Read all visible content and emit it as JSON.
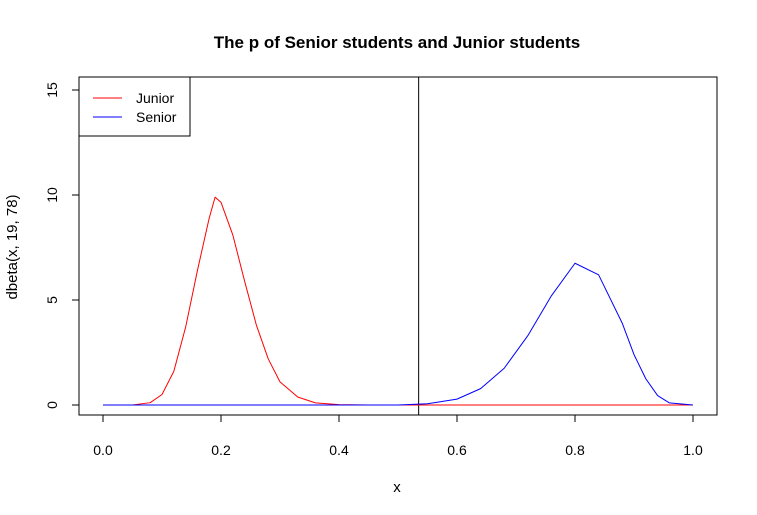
{
  "chart_data": {
    "type": "line",
    "title": "The p of Senior students and Junior students",
    "xlabel": "x",
    "ylabel": "dbeta(x, 19, 78)",
    "xlim": [
      0.0,
      1.0
    ],
    "ylim": [
      0,
      15
    ],
    "x_ticks": [
      "0.0",
      "0.2",
      "0.4",
      "0.6",
      "0.8",
      "1.0"
    ],
    "y_ticks": [
      "0",
      "5",
      "10",
      "15"
    ],
    "grid": false,
    "legend_position": "top-left",
    "vline_x": 0.535,
    "series": [
      {
        "name": "Junior",
        "color": "#ff0000",
        "distribution": "dbeta(x, 19, 78)",
        "x": [
          0.0,
          0.05,
          0.08,
          0.1,
          0.12,
          0.14,
          0.16,
          0.18,
          0.19,
          0.2,
          0.22,
          0.24,
          0.26,
          0.28,
          0.3,
          0.33,
          0.36,
          0.4,
          0.45,
          0.5,
          1.0
        ],
        "y": [
          0.0,
          0.003,
          0.11,
          0.5,
          1.6,
          3.7,
          6.4,
          8.9,
          9.9,
          9.65,
          8.1,
          5.9,
          3.8,
          2.2,
          1.1,
          0.38,
          0.1,
          0.02,
          0.0,
          0.0,
          0.0
        ]
      },
      {
        "name": "Senior",
        "color": "#0000ff",
        "x": [
          0.0,
          0.5,
          0.55,
          0.6,
          0.64,
          0.68,
          0.72,
          0.76,
          0.8,
          0.84,
          0.88,
          0.9,
          0.92,
          0.94,
          0.96,
          1.0
        ],
        "y": [
          0.0,
          0.0,
          0.06,
          0.28,
          0.78,
          1.75,
          3.3,
          5.2,
          6.75,
          6.2,
          3.9,
          2.4,
          1.25,
          0.45,
          0.1,
          0.0
        ]
      }
    ]
  }
}
